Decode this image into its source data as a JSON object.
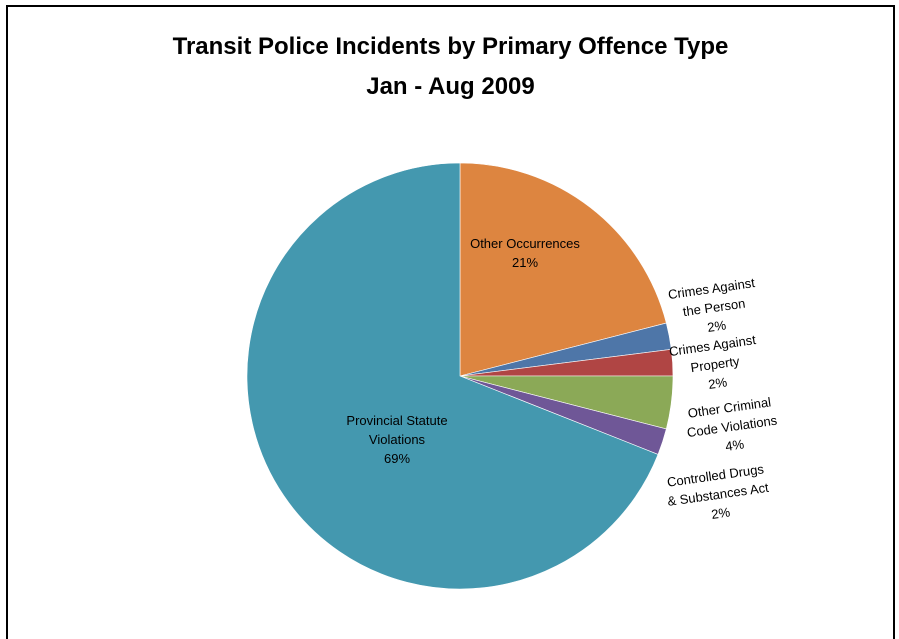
{
  "chart_data": {
    "type": "pie",
    "title": "Transit Police Incidents by Primary Offence Type",
    "subtitle": "Jan - Aug 2009",
    "slices": [
      {
        "label": [
          "Other Occurrences"
        ],
        "percent_label": "21%",
        "value": 21,
        "color": "#DD8540"
      },
      {
        "label": [
          "Crimes Against",
          "the Person"
        ],
        "percent_label": "2%",
        "value": 2,
        "color": "#4E76A8"
      },
      {
        "label": [
          "Crimes Against",
          "Property"
        ],
        "percent_label": "2%",
        "value": 2,
        "color": "#B04544"
      },
      {
        "label": [
          "Other Criminal",
          "Code Violations"
        ],
        "percent_label": "4%",
        "value": 4,
        "color": "#8BA957"
      },
      {
        "label": [
          "Controlled Drugs",
          "& Substances Act"
        ],
        "percent_label": "2%",
        "value": 2,
        "color": "#6F5797"
      },
      {
        "label": [
          "Provincial Statute",
          "Violations"
        ],
        "percent_label": "69%",
        "value": 69,
        "color": "#4498AF"
      }
    ]
  }
}
